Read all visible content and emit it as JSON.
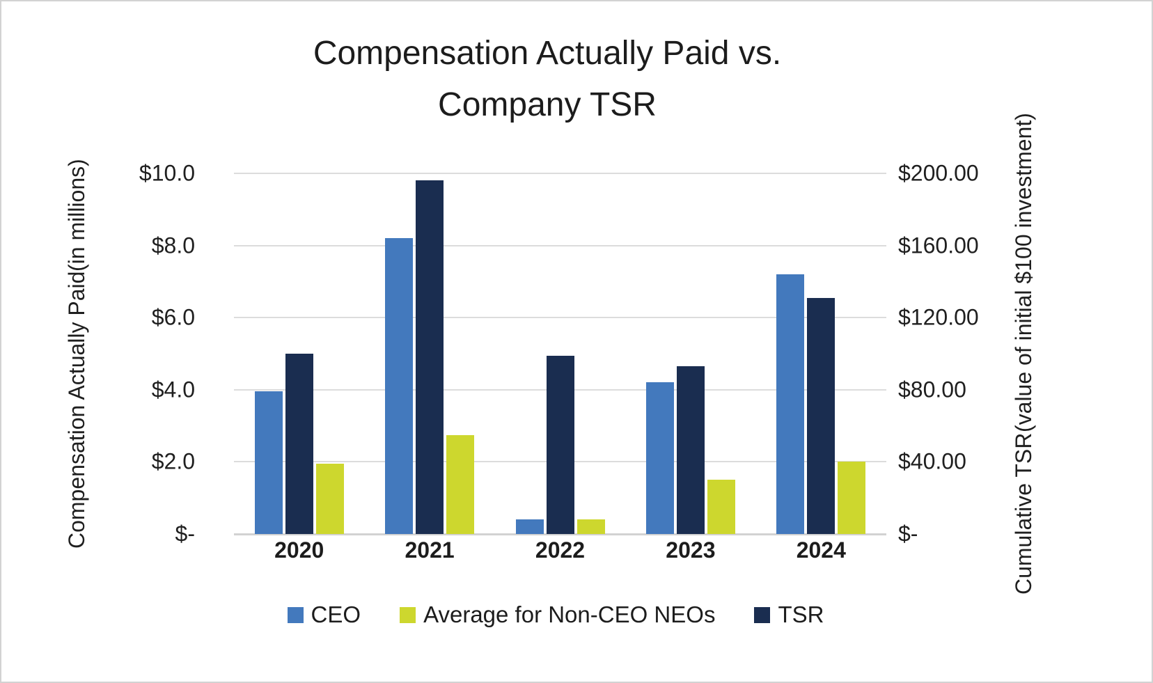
{
  "frame": {
    "border_color": "#d2d2d2",
    "background": "#ffffff"
  },
  "chart_data": {
    "type": "bar",
    "title_lines": [
      "Compensation Actually Paid vs.",
      "Company TSR"
    ],
    "title": "Compensation Actually Paid vs. Company TSR",
    "categories": [
      "2020",
      "2021",
      "2022",
      "2023",
      "2024"
    ],
    "series": [
      {
        "id": "ceo",
        "name": "CEO",
        "color": "#4379BD",
        "axis": "left",
        "values": [
          3.95,
          8.2,
          0.4,
          4.2,
          7.2
        ]
      },
      {
        "id": "neo",
        "name": "Average for Non-CEO NEOs",
        "color": "#CDD72E",
        "axis": "left",
        "values": [
          1.95,
          2.75,
          0.4,
          1.5,
          2.0
        ]
      },
      {
        "id": "tsr",
        "name": "TSR",
        "color": "#1A2D50",
        "axis": "right",
        "values": [
          100,
          196,
          99,
          93,
          131
        ]
      }
    ],
    "bar_order": [
      "ceo",
      "tsr",
      "neo"
    ],
    "left_axis": {
      "title_lines": [
        "Compensation Actually Paid",
        "(in millions)"
      ],
      "ticks": [
        "$10.0",
        "$8.0",
        "$6.0",
        "$4.0",
        "$2.0",
        "$-"
      ],
      "min": 0,
      "max": 10
    },
    "right_axis": {
      "title_lines": [
        "Cumulative TSR",
        "(value of initial $100 investment)"
      ],
      "ticks": [
        "$200.00",
        "$160.00",
        "$120.00",
        "$80.00",
        "$40.00",
        "$-"
      ],
      "min": 0,
      "max": 200
    },
    "grid": true,
    "gridline_color": "#dcdcdc",
    "legend_position": "bottom"
  }
}
